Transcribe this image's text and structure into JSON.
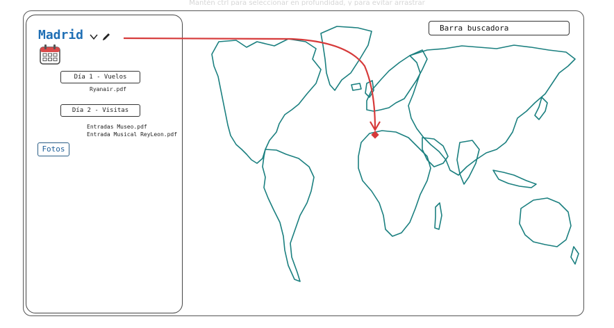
{
  "hint": "Mantén ctrl para seleccionar en profundidad, y para evitar arrastrar",
  "sidebar": {
    "city": "Madrid",
    "days": [
      {
        "label": "Día 1 - Vuelos",
        "files": [
          "Ryanair.pdf"
        ]
      },
      {
        "label": "Día 2 - Visitas",
        "files": [
          "Entradas Museo.pdf",
          "Entrada Musical ReyLeon.pdf"
        ]
      }
    ],
    "photos_label": "Fotos"
  },
  "search": {
    "label": "Barra buscadora"
  },
  "colors": {
    "city_title": "#1f6fb5",
    "map_outline": "#1a7f7f",
    "arrow": "#d63a3a",
    "calendar": "#d94a4a"
  },
  "icons": {
    "chevron": "chevron-down-icon",
    "edit": "pencil-icon",
    "calendar": "calendar-icon",
    "marker": "location-marker-icon"
  }
}
